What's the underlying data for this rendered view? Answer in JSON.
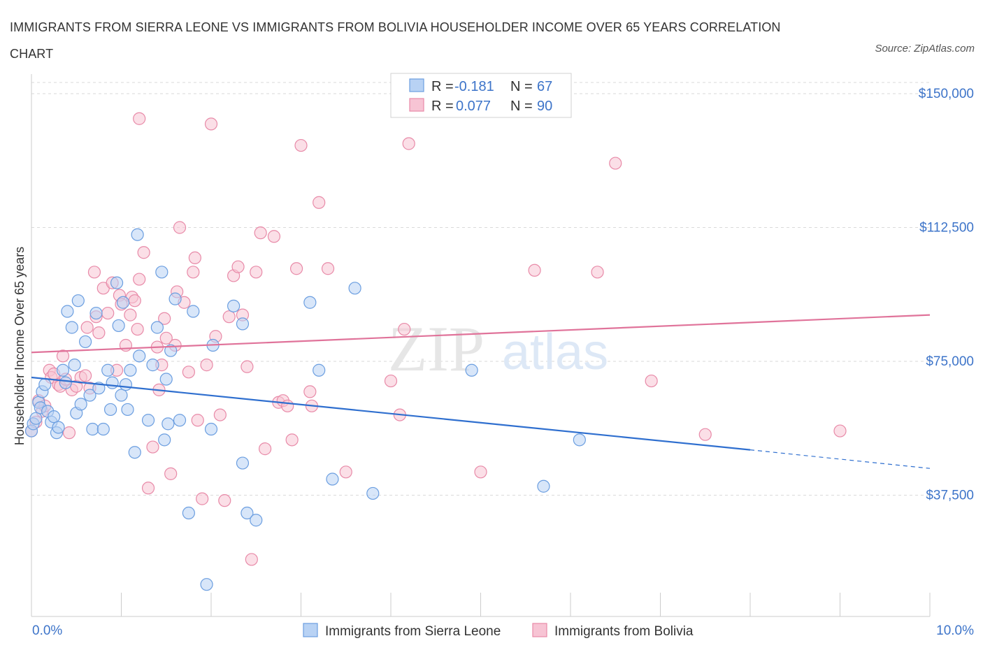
{
  "title": "IMMIGRANTS FROM SIERRA LEONE VS IMMIGRANTS FROM BOLIVIA HOUSEHOLDER INCOME OVER 65 YEARS CORRELATION CHART",
  "source": "Source: ZipAtlas.com",
  "watermark": {
    "zip": "ZIP",
    "atlas": "atlas"
  },
  "colors": {
    "sierra_fill": "#b8d2f4",
    "sierra_stroke": "#6b9ee0",
    "sierra_line": "#2f6fcf",
    "bolivia_fill": "#f7c4d4",
    "bolivia_stroke": "#e88aa8",
    "bolivia_line": "#e0739a",
    "grid": "#d9d9d9",
    "axis_text": "#3d74c9"
  },
  "legend": {
    "rows": [
      {
        "r_label": "R = ",
        "r_value": "-0.181",
        "n_label": "N = ",
        "n_value": "67"
      },
      {
        "r_label": "R = ",
        "r_value": "0.077",
        "n_label": "N = ",
        "n_value": "90"
      }
    ]
  },
  "bottom_legend": [
    "Immigrants from Sierra Leone",
    "Immigrants from Bolivia"
  ],
  "chart_data": {
    "type": "scatter",
    "title": "IMMIGRANTS FROM SIERRA LEONE VS IMMIGRANTS FROM BOLIVIA HOUSEHOLDER INCOME OVER 65 YEARS CORRELATION CHART",
    "xlabel": "",
    "ylabel": "Householder Income Over 65 years",
    "xlim": [
      0,
      10
    ],
    "ylim": [
      0,
      165000
    ],
    "x_tick_labels": [
      "0.0%",
      "10.0%"
    ],
    "y_ticks": [
      37500,
      75000,
      112500,
      150000
    ],
    "y_tick_labels": [
      "$37,500",
      "$75,000",
      "$112,500",
      "$150,000"
    ],
    "grid": "horizontal dashed",
    "legend_position": "top-center",
    "series": [
      {
        "name": "Immigrants from Sierra Leone",
        "r": -0.181,
        "n": 67,
        "trend": {
          "x0": 0,
          "y0": 70500,
          "x1": 8.0,
          "y1": 50200,
          "dash_to_x": 10,
          "dash_to_y": 45000
        },
        "points": [
          [
            0.0,
            55500
          ],
          [
            0.02,
            57500
          ],
          [
            0.05,
            59000
          ],
          [
            0.08,
            63500
          ],
          [
            0.1,
            62000
          ],
          [
            0.12,
            66500
          ],
          [
            0.15,
            68500
          ],
          [
            0.18,
            61000
          ],
          [
            0.22,
            58000
          ],
          [
            0.25,
            59500
          ],
          [
            0.28,
            55000
          ],
          [
            0.3,
            56500
          ],
          [
            0.35,
            72500
          ],
          [
            0.38,
            69000
          ],
          [
            0.4,
            89000
          ],
          [
            0.45,
            84500
          ],
          [
            0.48,
            74000
          ],
          [
            0.5,
            60500
          ],
          [
            0.52,
            92000
          ],
          [
            0.55,
            63000
          ],
          [
            0.6,
            80500
          ],
          [
            0.65,
            65500
          ],
          [
            0.68,
            56000
          ],
          [
            0.72,
            88500
          ],
          [
            0.75,
            67500
          ],
          [
            0.8,
            56000
          ],
          [
            0.85,
            72500
          ],
          [
            0.88,
            61500
          ],
          [
            0.9,
            69000
          ],
          [
            0.95,
            97000
          ],
          [
            0.97,
            85000
          ],
          [
            1.0,
            65500
          ],
          [
            1.02,
            91500
          ],
          [
            1.05,
            68500
          ],
          [
            1.07,
            61500
          ],
          [
            1.1,
            72500
          ],
          [
            1.15,
            49500
          ],
          [
            1.18,
            110500
          ],
          [
            1.2,
            76500
          ],
          [
            1.3,
            58500
          ],
          [
            1.35,
            74000
          ],
          [
            1.4,
            84500
          ],
          [
            1.45,
            100000
          ],
          [
            1.48,
            53000
          ],
          [
            1.5,
            70000
          ],
          [
            1.52,
            57500
          ],
          [
            1.55,
            78000
          ],
          [
            1.6,
            92500
          ],
          [
            1.65,
            58500
          ],
          [
            1.75,
            32500
          ],
          [
            1.8,
            89000
          ],
          [
            1.95,
            12500
          ],
          [
            2.0,
            56000
          ],
          [
            2.02,
            79500
          ],
          [
            2.25,
            90500
          ],
          [
            2.35,
            85500
          ],
          [
            2.35,
            46500
          ],
          [
            2.4,
            32500
          ],
          [
            2.5,
            30500
          ],
          [
            3.1,
            91500
          ],
          [
            3.2,
            72500
          ],
          [
            3.35,
            42000
          ],
          [
            3.6,
            95500
          ],
          [
            3.8,
            38000
          ],
          [
            4.9,
            72500
          ],
          [
            5.7,
            40000
          ],
          [
            6.1,
            53000
          ]
        ]
      },
      {
        "name": "Immigrants from Bolivia",
        "r": 0.077,
        "n": 90,
        "trend": {
          "x0": 0,
          "y0": 77500,
          "x1": 10,
          "y1": 88000
        },
        "points": [
          [
            0.0,
            55500
          ],
          [
            0.05,
            58000
          ],
          [
            0.08,
            64000
          ],
          [
            0.12,
            61000
          ],
          [
            0.15,
            62500
          ],
          [
            0.2,
            72500
          ],
          [
            0.22,
            70500
          ],
          [
            0.25,
            71500
          ],
          [
            0.3,
            68500
          ],
          [
            0.32,
            68000
          ],
          [
            0.35,
            76500
          ],
          [
            0.38,
            70000
          ],
          [
            0.42,
            55000
          ],
          [
            0.45,
            67000
          ],
          [
            0.5,
            68000
          ],
          [
            0.55,
            70500
          ],
          [
            0.6,
            71000
          ],
          [
            0.62,
            84500
          ],
          [
            0.65,
            67500
          ],
          [
            0.7,
            100000
          ],
          [
            0.72,
            87500
          ],
          [
            0.75,
            83000
          ],
          [
            0.8,
            95500
          ],
          [
            0.85,
            88500
          ],
          [
            0.9,
            97000
          ],
          [
            0.95,
            72500
          ],
          [
            0.98,
            93500
          ],
          [
            1.0,
            91000
          ],
          [
            1.05,
            79500
          ],
          [
            1.1,
            88000
          ],
          [
            1.12,
            93000
          ],
          [
            1.15,
            92000
          ],
          [
            1.18,
            84000
          ],
          [
            1.2,
            98000
          ],
          [
            1.25,
            105500
          ],
          [
            1.3,
            39500
          ],
          [
            1.35,
            51000
          ],
          [
            1.4,
            79000
          ],
          [
            1.42,
            67000
          ],
          [
            1.45,
            74000
          ],
          [
            1.48,
            87000
          ],
          [
            1.5,
            81500
          ],
          [
            1.55,
            43500
          ],
          [
            1.6,
            79500
          ],
          [
            1.62,
            94500
          ],
          [
            1.65,
            112500
          ],
          [
            1.7,
            91500
          ],
          [
            1.75,
            72000
          ],
          [
            1.8,
            100000
          ],
          [
            1.82,
            104000
          ],
          [
            1.85,
            58500
          ],
          [
            1.9,
            36500
          ],
          [
            1.95,
            74000
          ],
          [
            2.0,
            141500
          ],
          [
            2.05,
            82000
          ],
          [
            2.1,
            60000
          ],
          [
            2.15,
            36000
          ],
          [
            2.2,
            87500
          ],
          [
            2.25,
            99000
          ],
          [
            2.3,
            101500
          ],
          [
            2.35,
            88000
          ],
          [
            2.4,
            73500
          ],
          [
            2.45,
            19500
          ],
          [
            2.5,
            100000
          ],
          [
            2.55,
            111000
          ],
          [
            2.6,
            50500
          ],
          [
            2.7,
            110000
          ],
          [
            2.75,
            63500
          ],
          [
            2.8,
            64000
          ],
          [
            2.85,
            62500
          ],
          [
            2.9,
            53000
          ],
          [
            2.95,
            101000
          ],
          [
            3.0,
            135500
          ],
          [
            3.1,
            66500
          ],
          [
            3.12,
            62500
          ],
          [
            3.2,
            119500
          ],
          [
            3.3,
            101000
          ],
          [
            3.5,
            44000
          ],
          [
            4.0,
            69500
          ],
          [
            4.1,
            60000
          ],
          [
            4.15,
            84000
          ],
          [
            4.2,
            136000
          ],
          [
            5.0,
            44000
          ],
          [
            5.6,
            100500
          ],
          [
            6.3,
            100000
          ],
          [
            6.5,
            130500
          ],
          [
            6.9,
            69500
          ],
          [
            7.5,
            54500
          ],
          [
            9.0,
            55500
          ],
          [
            1.2,
            143000
          ]
        ]
      }
    ]
  }
}
